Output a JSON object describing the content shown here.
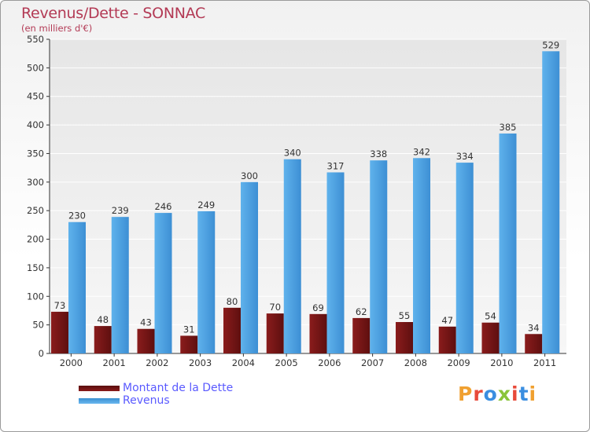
{
  "title": "Revenus/Dette - SONNAC",
  "subtitle": "(en milliers d'€)",
  "colors": {
    "dette": "#7a1516",
    "revenus": "#4a9fe0",
    "title": "#b33a55",
    "legend_text": "#5a5aff"
  },
  "legend": [
    {
      "label": "Montant de la Dette",
      "color": "#7a1516"
    },
    {
      "label": "Revenus",
      "color": "#4a9fe0"
    }
  ],
  "logo": {
    "text": "Proxiti",
    "letters": [
      {
        "ch": "P",
        "color": "#f0a030"
      },
      {
        "ch": "r",
        "color": "#e84a3a"
      },
      {
        "ch": "o",
        "color": "#3a8ee0"
      },
      {
        "ch": "x",
        "color": "#8ac43a"
      },
      {
        "ch": "i",
        "color": "#e84a3a"
      },
      {
        "ch": "t",
        "color": "#3a8ee0"
      },
      {
        "ch": "i",
        "color": "#f0a030"
      }
    ]
  },
  "chart_data": {
    "type": "bar",
    "title": "Revenus/Dette - SONNAC",
    "subtitle": "(en milliers d'€)",
    "categories": [
      "2000",
      "2001",
      "2002",
      "2003",
      "2004",
      "2005",
      "2006",
      "2007",
      "2008",
      "2009",
      "2010",
      "2011"
    ],
    "series": [
      {
        "name": "Montant de la Dette",
        "values": [
          73,
          48,
          43,
          31,
          80,
          70,
          69,
          62,
          55,
          47,
          54,
          34
        ]
      },
      {
        "name": "Revenus",
        "values": [
          230,
          239,
          246,
          249,
          300,
          340,
          317,
          338,
          342,
          334,
          385,
          529
        ]
      }
    ],
    "ylim": [
      0,
      550
    ],
    "yticks": [
      0,
      50,
      100,
      150,
      200,
      250,
      300,
      350,
      400,
      450,
      500,
      550
    ],
    "grid": true,
    "legend_position": "bottom-left"
  }
}
